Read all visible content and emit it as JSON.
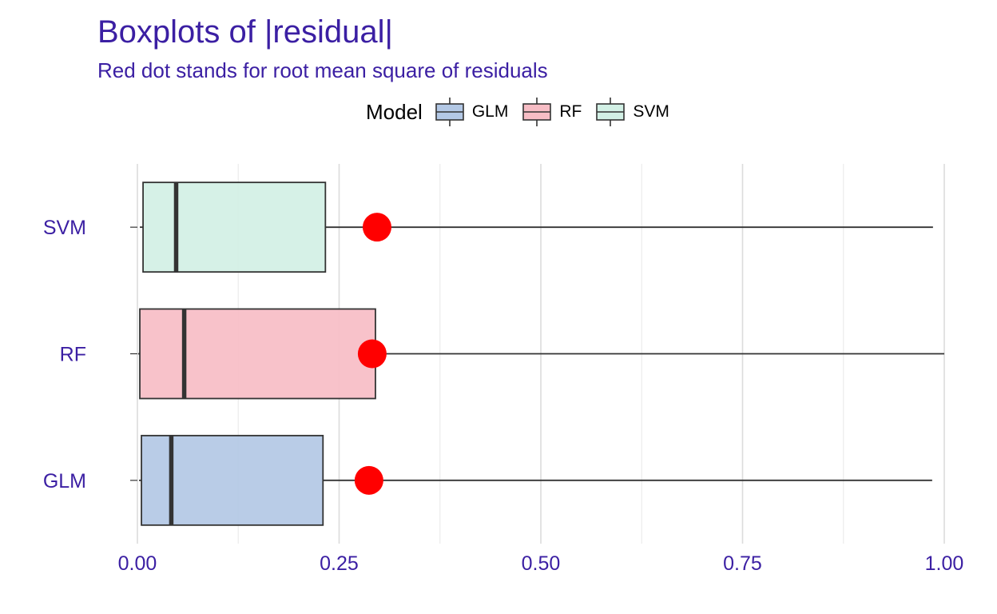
{
  "chart_data": {
    "type": "boxplot",
    "title": "Boxplots of |residual|",
    "subtitle": "Red dot stands for root mean square of residuals",
    "legend": {
      "title": "Model",
      "position": "top",
      "entries": [
        {
          "name": "GLM",
          "color": "#b3c8e5"
        },
        {
          "name": "RF",
          "color": "#f7bdc5"
        },
        {
          "name": "SVM",
          "color": "#d2f0e5"
        }
      ]
    },
    "orientation": "horizontal",
    "xlim": [
      0,
      1.0
    ],
    "x_ticks": [
      "0.00",
      "0.25",
      "0.50",
      "0.75",
      "1.00"
    ],
    "x_tick_values": [
      0,
      0.25,
      0.5,
      0.75,
      1.0
    ],
    "categories": [
      "SVM",
      "RF",
      "GLM"
    ],
    "series": [
      {
        "name": "SVM",
        "color": "#d2f0e5",
        "min": 0.003,
        "q1": 0.007,
        "median": 0.048,
        "q3": 0.233,
        "max": 0.986,
        "rmse": 0.297
      },
      {
        "name": "RF",
        "color": "#f7bdc5",
        "min": 0.001,
        "q1": 0.003,
        "median": 0.058,
        "q3": 0.295,
        "max": 1.0,
        "rmse": 0.291
      },
      {
        "name": "GLM",
        "color": "#b3c8e5",
        "min": 0.002,
        "q1": 0.005,
        "median": 0.042,
        "q3": 0.23,
        "max": 0.985,
        "rmse": 0.287
      }
    ],
    "rmse_marker_color": "#ff0000",
    "grid": true
  }
}
